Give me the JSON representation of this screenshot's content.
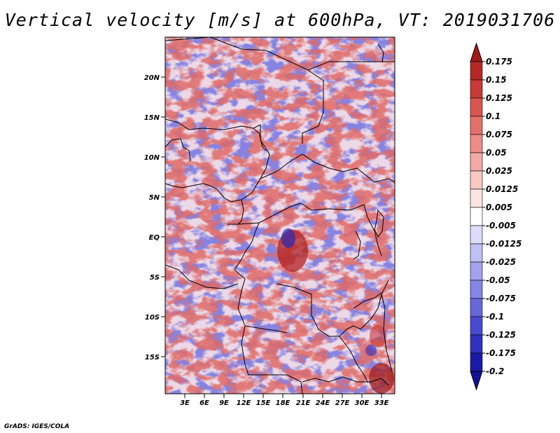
{
  "title": "Vertical velocity [m/s] at 600hPa, VT: 2019031706",
  "credit": "GrADS: IGES/COLA",
  "map": {
    "lat_ticks": [
      "20N",
      "15N",
      "10N",
      "5N",
      "EQ",
      "5S",
      "10S",
      "15S"
    ],
    "lon_ticks": [
      "3E",
      "6E",
      "9E",
      "12E",
      "15E",
      "18E",
      "21E",
      "24E",
      "27E",
      "30E",
      "33E"
    ],
    "lon_range": [
      0,
      35
    ],
    "lat_range": [
      -20,
      24
    ]
  },
  "colorbar": {
    "labels": [
      "0.175",
      "0.15",
      "0.125",
      "0.1",
      "0.075",
      "0.05",
      "0.025",
      "0.0125",
      "0.005",
      "-0.005",
      "-0.0125",
      "-0.025",
      "-0.05",
      "-0.075",
      "-0.1",
      "-0.125",
      "-0.175",
      "-0.2"
    ],
    "colors": [
      "#a01a18",
      "#b52828",
      "#c93a37",
      "#d95552",
      "#e4706c",
      "#ec8c87",
      "#f3aaa6",
      "#f8c8c5",
      "#fce4e2",
      "#ffffff",
      "#dcdcfa",
      "#c0c0f4",
      "#a2a2ee",
      "#8585e6",
      "#6767dc",
      "#4a4ad0",
      "#3030c0",
      "#1a1aa6",
      "#10109a"
    ]
  }
}
